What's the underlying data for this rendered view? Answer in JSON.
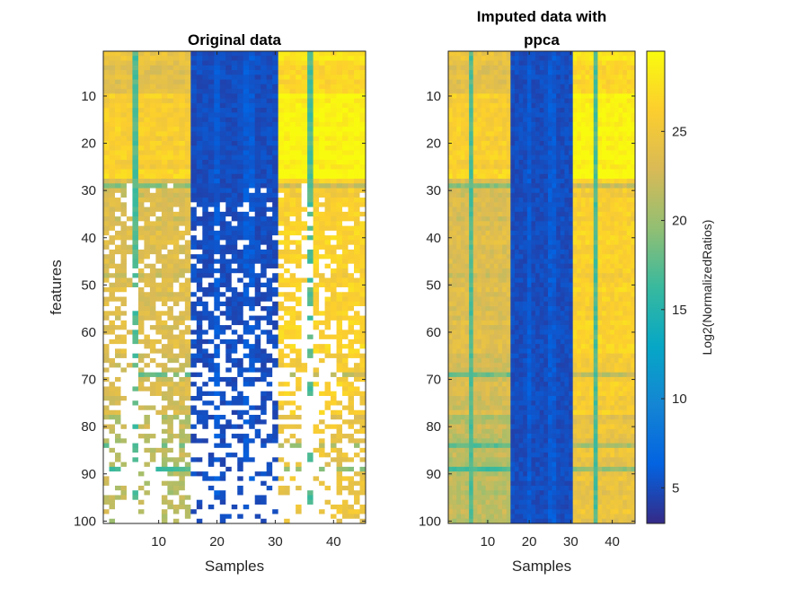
{
  "colorbar": {
    "label": "Log2(NormalizedRatios)",
    "ticks": [
      5,
      10,
      15,
      20,
      25
    ],
    "range": [
      3,
      29.5
    ],
    "colormap": "parula",
    "colors": [
      "#352a87",
      "#0363e1",
      "#1485d4",
      "#06a7c6",
      "#38b99e",
      "#92bf73",
      "#d9ba56",
      "#fcce2e",
      "#f9fb0e"
    ]
  },
  "chart_data": [
    {
      "type": "heatmap",
      "title": "Original data",
      "xlabel": "Samples",
      "ylabel": "features",
      "xticks": [
        10,
        20,
        30,
        40
      ],
      "yticks": [
        10,
        20,
        30,
        40,
        50,
        60,
        70,
        80,
        90,
        100
      ],
      "xlim": [
        1,
        45
      ],
      "ylim": [
        1,
        100
      ],
      "y_direction": "reverse",
      "missing_values_shown_as": "white",
      "sample_groups": [
        {
          "samples": [
            1,
            15
          ],
          "approx_value": 24
        },
        {
          "samples": [
            16,
            30
          ],
          "approx_value": 5
        },
        {
          "samples": [
            31,
            45
          ],
          "approx_value": 27
        }
      ],
      "low_columns": [
        6,
        36
      ],
      "low_column_value": 17,
      "missingness": "increases with feature index; none above feature 28, most samples missing below feature 85"
    },
    {
      "type": "heatmap",
      "title": [
        "Imputed data with",
        "ppca"
      ],
      "xlabel": "Samples",
      "ylabel": "",
      "xticks": [
        10,
        20,
        30,
        40
      ],
      "yticks": [
        10,
        20,
        30,
        40,
        50,
        60,
        70,
        80,
        90,
        100
      ],
      "xlim": [
        1,
        45
      ],
      "ylim": [
        1,
        100
      ],
      "y_direction": "reverse",
      "sample_groups": [
        {
          "samples": [
            1,
            15
          ],
          "approx_value": 24
        },
        {
          "samples": [
            16,
            30
          ],
          "approx_value": 5
        },
        {
          "samples": [
            31,
            45
          ],
          "approx_value": 27
        }
      ],
      "low_columns": [
        6,
        36
      ],
      "low_column_value": 17,
      "missingness": "none"
    }
  ]
}
